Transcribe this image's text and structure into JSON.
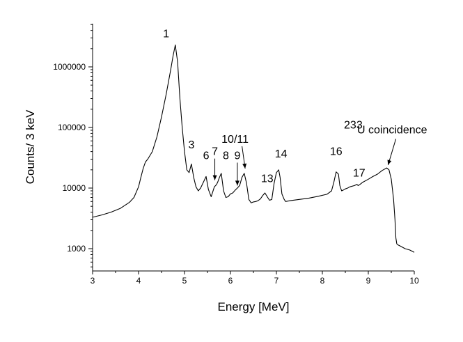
{
  "chart_data": {
    "type": "line",
    "title": "",
    "xlabel": "Energy [MeV]",
    "ylabel": "Counts/ 3 keV",
    "xlim": [
      3,
      10
    ],
    "ylim": [
      500,
      5000000
    ],
    "y_scale": "log",
    "grid": false,
    "legend": "none",
    "x_ticks": [
      "3",
      "4",
      "5",
      "6",
      "7",
      "8",
      "9",
      "10"
    ],
    "y_ticks": [
      "1000",
      "10000",
      "100000",
      "1000000"
    ],
    "line_color": "#000000",
    "series": [
      {
        "x": [
          3.0,
          3.2,
          3.4,
          3.6,
          3.8,
          3.9,
          4.0,
          4.05,
          4.1,
          4.15,
          4.2,
          4.3,
          4.4,
          4.5,
          4.6,
          4.7,
          4.75,
          4.8,
          4.85,
          4.9,
          4.95,
          5.0,
          5.05,
          5.1,
          5.15,
          5.2,
          5.25,
          5.3,
          5.35,
          5.4,
          5.47,
          5.52,
          5.58,
          5.65,
          5.7,
          5.73,
          5.76,
          5.8,
          5.85,
          5.9,
          5.95,
          6.0,
          6.05,
          6.1,
          6.15,
          6.2,
          6.25,
          6.3,
          6.35,
          6.4,
          6.45,
          6.5,
          6.55,
          6.6,
          6.65,
          6.7,
          6.75,
          6.8,
          6.85,
          6.9,
          6.95,
          7.0,
          7.05,
          7.08,
          7.12,
          7.17,
          7.2,
          7.3,
          7.5,
          7.7,
          7.9,
          8.1,
          8.2,
          8.25,
          8.3,
          8.35,
          8.38,
          8.42,
          8.46,
          8.5,
          8.55,
          8.6,
          8.7,
          8.75,
          8.78,
          8.82,
          8.88,
          9.0,
          9.1,
          9.2,
          9.3,
          9.4,
          9.45,
          9.5,
          9.55,
          9.58,
          9.6,
          9.62,
          9.65,
          9.7,
          9.8,
          9.9,
          10.0
        ],
        "y": [
          3300,
          3600,
          4000,
          4600,
          5800,
          7000,
          10500,
          15000,
          21000,
          27000,
          30000,
          40000,
          70000,
          150000,
          350000,
          900000,
          1500000,
          2300000,
          1200000,
          300000,
          100000,
          40000,
          20000,
          18000,
          25000,
          15000,
          10500,
          9000,
          10000,
          12000,
          15500,
          9500,
          7200,
          10500,
          11500,
          13000,
          15000,
          17500,
          9000,
          7000,
          7200,
          8000,
          8300,
          9200,
          10000,
          11000,
          15000,
          17500,
          12000,
          6500,
          5700,
          5900,
          6000,
          6200,
          6600,
          7500,
          8300,
          7200,
          6300,
          6500,
          12000,
          18000,
          20000,
          15000,
          8000,
          6500,
          6000,
          6200,
          6500,
          6800,
          7300,
          7900,
          9000,
          12500,
          18500,
          17000,
          11000,
          9000,
          9300,
          9700,
          10000,
          10500,
          11000,
          11500,
          11000,
          11500,
          12500,
          14000,
          15500,
          17000,
          19500,
          21500,
          20000,
          14000,
          6500,
          3000,
          1500,
          1200,
          1150,
          1100,
          1000,
          950,
          870
        ]
      }
    ],
    "annotations": [
      {
        "text": "1",
        "x": 4.6,
        "y": 3100000,
        "arrow": false
      },
      {
        "text": "3",
        "x": 5.15,
        "y": 45000,
        "arrow": false
      },
      {
        "text": "6",
        "x": 5.47,
        "y": 30000,
        "arrow": false
      },
      {
        "text": "7",
        "x": 5.66,
        "y": 35000,
        "arrow": true,
        "tip_x": 5.66,
        "tip_y": 13500
      },
      {
        "text": "8",
        "x": 5.9,
        "y": 30000,
        "arrow": false
      },
      {
        "text": "9",
        "x": 6.15,
        "y": 30000,
        "arrow": true,
        "tip_x": 6.15,
        "tip_y": 11000
      },
      {
        "text": "10/11",
        "x": 6.1,
        "y": 56000,
        "arrow": true,
        "tip_x": 6.32,
        "tip_y": 21000
      },
      {
        "text": "13",
        "x": 6.8,
        "y": 12500,
        "arrow": false
      },
      {
        "text": "14",
        "x": 7.1,
        "y": 32000,
        "arrow": false
      },
      {
        "text": "16",
        "x": 8.3,
        "y": 35000,
        "arrow": false
      },
      {
        "text": "17",
        "x": 8.8,
        "y": 15500,
        "arrow": false
      },
      {
        "text": "U coincidence",
        "superscript": "233",
        "x": 8.47,
        "y": 80000,
        "arrow": true,
        "tip_x": 9.43,
        "tip_y": 24000
      }
    ]
  }
}
